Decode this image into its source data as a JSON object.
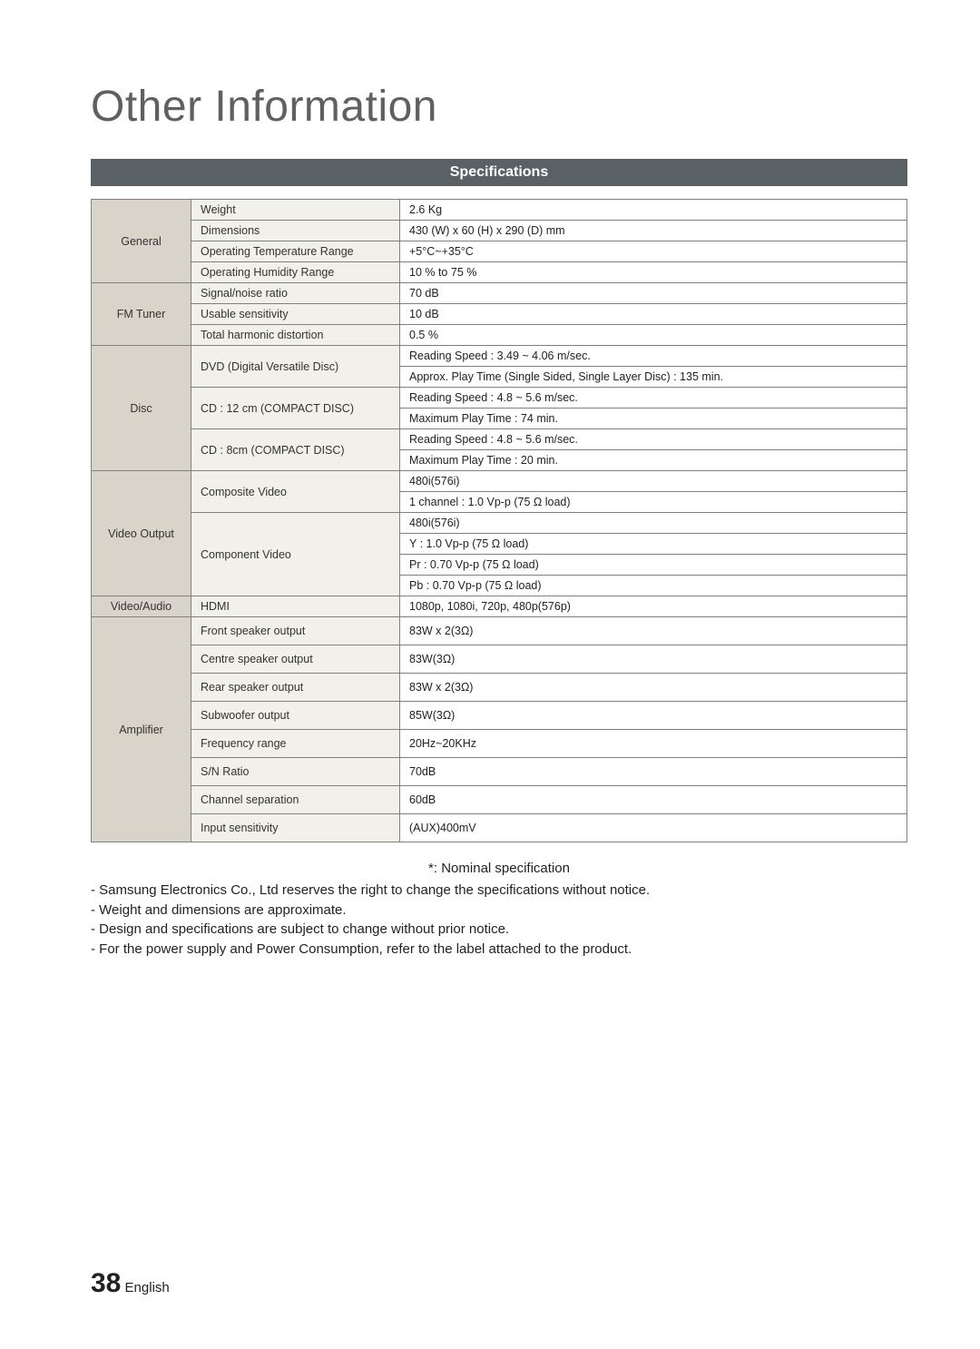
{
  "page_title": "Other Information",
  "section_header": "Specifications",
  "categories": {
    "general": "General",
    "fm_tuner": "FM Tuner",
    "disc": "Disc",
    "video_output": "Video Output",
    "video_audio": "Video/Audio",
    "amplifier": "Amplifier"
  },
  "general": {
    "weight_label": "Weight",
    "weight_value": "2.6 Kg",
    "dimensions_label": "Dimensions",
    "dimensions_value": "430 (W) x 60 (H) x 290 (D) mm",
    "op_temp_label": "Operating Temperature Range",
    "op_temp_value": "+5°C~+35°C",
    "op_humid_label": "Operating Humidity Range",
    "op_humid_value": "10 % to 75 %"
  },
  "fm_tuner": {
    "snr_label": "Signal/noise ratio",
    "snr_value": "70 dB",
    "usable_label": "Usable sensitivity",
    "usable_value": "10 dB",
    "thd_label": "Total harmonic distortion",
    "thd_value": "0.5 %"
  },
  "disc": {
    "dvd_label": "DVD (Digital Versatile Disc)",
    "dvd_v1": "Reading Speed : 3.49 ~ 4.06 m/sec.",
    "dvd_v2": "Approx. Play Time (Single Sided, Single Layer Disc) : 135 min.",
    "cd12_label": "CD : 12 cm (COMPACT DISC)",
    "cd12_v1": "Reading Speed : 4.8 ~ 5.6 m/sec.",
    "cd12_v2": "Maximum Play Time : 74 min.",
    "cd8_label": "CD : 8cm (COMPACT DISC)",
    "cd8_v1": "Reading Speed : 4.8 ~ 5.6 m/sec.",
    "cd8_v2": "Maximum Play Time : 20 min."
  },
  "video_output": {
    "composite_label": "Composite Video",
    "composite_v1": "480i(576i)",
    "composite_v2": "1 channel : 1.0 Vp-p (75 Ω load)",
    "component_label": "Component Video",
    "component_v1": "480i(576i)",
    "component_v2": "Y : 1.0 Vp-p (75 Ω load)",
    "component_v3": "Pr : 0.70 Vp-p (75 Ω load)",
    "component_v4": "Pb : 0.70 Vp-p (75 Ω load)"
  },
  "video_audio": {
    "hdmi_label": "HDMI",
    "hdmi_value": "1080p, 1080i, 720p, 480p(576p)"
  },
  "amplifier": {
    "front_label": "Front speaker output",
    "front_value": "83W x 2(3Ω)",
    "centre_label": "Centre speaker output",
    "centre_value": "83W(3Ω)",
    "rear_label": "Rear speaker output",
    "rear_value": "83W x 2(3Ω)",
    "sub_label": "Subwoofer output",
    "sub_value": "85W(3Ω)",
    "freq_label": "Frequency range",
    "freq_value": "20Hz~20KHz",
    "sn_label": "S/N Ratio",
    "sn_value": "70dB",
    "chan_label": "Channel separation",
    "chan_value": "60dB",
    "input_label": "Input sensitivity",
    "input_value": "(AUX)400mV"
  },
  "notes": {
    "nominal": "*: Nominal specification",
    "n1": "- Samsung Electronics Co., Ltd reserves the right to change the specifications without notice.",
    "n2": "- Weight and dimensions are approximate.",
    "n3": "- Design and specifications are subject to change without prior notice.",
    "n4": "- For the power supply and Power Consumption, refer to the label attached to the product."
  },
  "footer": {
    "page": "38",
    "lang": "English"
  },
  "colors": {
    "header_bg": "#5a6165",
    "header_text": "#ffffff",
    "category_bg": "#d8d4ca",
    "param_bg": "#f2f0ea",
    "border": "#808080",
    "title_color": "#606060"
  }
}
